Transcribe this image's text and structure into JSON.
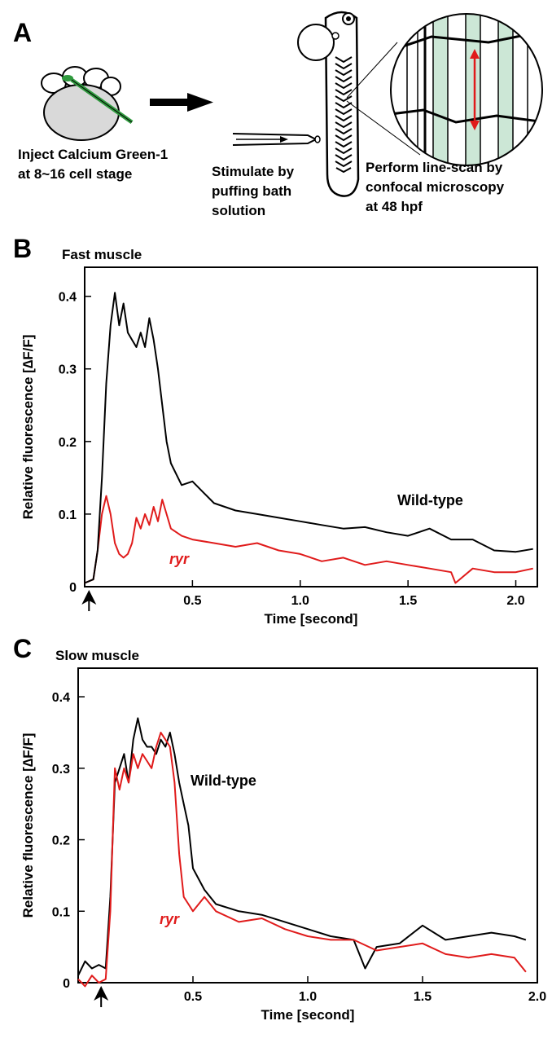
{
  "panel_a": {
    "letter": "A",
    "step1": [
      "Inject Calcium Green-1",
      "at 8~16 cell stage"
    ],
    "step2": [
      "Stimulate by",
      "puffing bath",
      "solution"
    ],
    "step3": [
      "Perform line-scan by",
      "confocal microscopy",
      "at 48 hpf"
    ],
    "colors": {
      "dye_green": "#2f9a3e",
      "muscle_green": "#cce7d6",
      "scan_red": "#e01b1b"
    }
  },
  "chart_data": [
    {
      "panel": "B",
      "type": "line",
      "title": "Fast muscle",
      "xlabel": "Time [second]",
      "ylabel": "Relative fluorescence  [∆F/F]",
      "xlim": [
        0,
        2.1
      ],
      "ylim": [
        0,
        0.44
      ],
      "xticks": [
        0.5,
        1.0,
        1.5,
        2.0
      ],
      "xtick_labels": [
        "0.5",
        "1.0",
        "1.5",
        "2.0"
      ],
      "yticks": [
        0,
        0.1,
        0.2,
        0.3,
        0.4
      ],
      "ytick_labels": [
        "0",
        "0.1",
        "0.2",
        "0.3",
        "0.4"
      ],
      "stimulus_marker_x": 0.02,
      "series": [
        {
          "name": "Wild-type",
          "color": "#000000",
          "x": [
            0,
            0.04,
            0.06,
            0.08,
            0.1,
            0.12,
            0.14,
            0.16,
            0.18,
            0.2,
            0.22,
            0.24,
            0.26,
            0.28,
            0.3,
            0.32,
            0.34,
            0.36,
            0.38,
            0.4,
            0.45,
            0.5,
            0.55,
            0.6,
            0.7,
            0.8,
            0.9,
            1.0,
            1.1,
            1.2,
            1.3,
            1.4,
            1.5,
            1.6,
            1.7,
            1.8,
            1.9,
            2.0,
            2.08
          ],
          "y": [
            0.005,
            0.01,
            0.05,
            0.15,
            0.28,
            0.36,
            0.405,
            0.36,
            0.39,
            0.35,
            0.34,
            0.33,
            0.35,
            0.33,
            0.37,
            0.34,
            0.3,
            0.25,
            0.2,
            0.17,
            0.14,
            0.145,
            0.13,
            0.115,
            0.105,
            0.1,
            0.095,
            0.09,
            0.085,
            0.08,
            0.082,
            0.075,
            0.07,
            0.08,
            0.065,
            0.065,
            0.05,
            0.048,
            0.052
          ]
        },
        {
          "name": "ryr",
          "color": "#e01b1b",
          "x": [
            0,
            0.04,
            0.06,
            0.08,
            0.1,
            0.12,
            0.14,
            0.16,
            0.18,
            0.2,
            0.22,
            0.24,
            0.26,
            0.28,
            0.3,
            0.32,
            0.34,
            0.36,
            0.38,
            0.4,
            0.45,
            0.5,
            0.6,
            0.7,
            0.8,
            0.9,
            1.0,
            1.1,
            1.2,
            1.3,
            1.4,
            1.5,
            1.6,
            1.7,
            1.72,
            1.8,
            1.9,
            2.0,
            2.08
          ],
          "y": [
            0.005,
            0.01,
            0.05,
            0.1,
            0.125,
            0.1,
            0.06,
            0.045,
            0.04,
            0.045,
            0.06,
            0.095,
            0.08,
            0.1,
            0.085,
            0.11,
            0.09,
            0.12,
            0.1,
            0.08,
            0.07,
            0.065,
            0.06,
            0.055,
            0.06,
            0.05,
            0.045,
            0.035,
            0.04,
            0.03,
            0.035,
            0.03,
            0.025,
            0.02,
            0.005,
            0.025,
            0.02,
            0.02,
            0.025
          ]
        }
      ]
    },
    {
      "panel": "C",
      "type": "line",
      "title": "Slow muscle",
      "xlabel": "Time [second]",
      "ylabel": "Relative fluorescence  [∆F/F]",
      "xlim": [
        0,
        2.0
      ],
      "ylim": [
        0,
        0.44
      ],
      "xticks": [
        0.5,
        1.0,
        1.5,
        2.0
      ],
      "xtick_labels": [
        "0.5",
        "1.0",
        "1.5",
        "2.0"
      ],
      "yticks": [
        0,
        0.1,
        0.2,
        0.3,
        0.4
      ],
      "ytick_labels": [
        "0",
        "0.1",
        "0.2",
        "0.3",
        "0.4"
      ],
      "stimulus_marker_x": 0.1,
      "series": [
        {
          "name": "Wild-type",
          "color": "#000000",
          "x": [
            0,
            0.03,
            0.06,
            0.09,
            0.12,
            0.14,
            0.16,
            0.18,
            0.2,
            0.22,
            0.24,
            0.26,
            0.28,
            0.3,
            0.32,
            0.34,
            0.36,
            0.38,
            0.4,
            0.42,
            0.44,
            0.46,
            0.48,
            0.5,
            0.55,
            0.6,
            0.7,
            0.8,
            0.9,
            1.0,
            1.1,
            1.2,
            1.25,
            1.3,
            1.4,
            1.5,
            1.6,
            1.7,
            1.8,
            1.9,
            1.95
          ],
          "y": [
            0.01,
            0.03,
            0.02,
            0.025,
            0.02,
            0.12,
            0.28,
            0.3,
            0.32,
            0.28,
            0.34,
            0.37,
            0.34,
            0.33,
            0.33,
            0.32,
            0.34,
            0.33,
            0.35,
            0.32,
            0.28,
            0.25,
            0.22,
            0.16,
            0.13,
            0.11,
            0.1,
            0.095,
            0.085,
            0.075,
            0.065,
            0.06,
            0.02,
            0.05,
            0.055,
            0.08,
            0.06,
            0.065,
            0.07,
            0.065,
            0.06
          ]
        },
        {
          "name": "ryr",
          "color": "#e01b1b",
          "x": [
            0,
            0.03,
            0.06,
            0.09,
            0.12,
            0.14,
            0.16,
            0.18,
            0.2,
            0.22,
            0.24,
            0.26,
            0.28,
            0.3,
            0.32,
            0.34,
            0.36,
            0.38,
            0.4,
            0.42,
            0.44,
            0.46,
            0.48,
            0.5,
            0.55,
            0.6,
            0.7,
            0.8,
            0.9,
            1.0,
            1.1,
            1.2,
            1.3,
            1.4,
            1.5,
            1.6,
            1.7,
            1.8,
            1.9,
            1.95
          ],
          "y": [
            0.005,
            -0.005,
            0.01,
            0.0,
            0.005,
            0.1,
            0.3,
            0.27,
            0.3,
            0.28,
            0.32,
            0.3,
            0.32,
            0.31,
            0.3,
            0.33,
            0.35,
            0.34,
            0.33,
            0.28,
            0.18,
            0.12,
            0.11,
            0.1,
            0.12,
            0.1,
            0.085,
            0.09,
            0.075,
            0.065,
            0.06,
            0.06,
            0.045,
            0.05,
            0.055,
            0.04,
            0.035,
            0.04,
            0.035,
            0.015
          ]
        }
      ]
    }
  ]
}
